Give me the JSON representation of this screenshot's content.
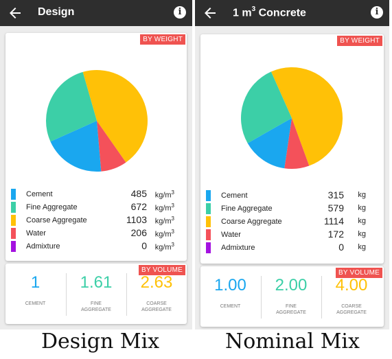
{
  "colors": {
    "cement": "#1aa7ef",
    "fine_aggregate": "#3ccfa7",
    "coarse_aggregate": "#ffc107",
    "water": "#f4515a",
    "admixture": "#a412e0",
    "badge": "#ef5350"
  },
  "icons": {
    "back": "arrow-left-icon",
    "info": "info-icon"
  },
  "screens": [
    {
      "title": "Design",
      "weight_badge": "BY WEIGHT",
      "materials": [
        {
          "name": "Cement",
          "value": 485,
          "unit": "kg/m",
          "unit_sup": "3",
          "color": "#1aa7ef"
        },
        {
          "name": "Fine Aggregate",
          "value": 672,
          "unit": "kg/m",
          "unit_sup": "3",
          "color": "#3ccfa7"
        },
        {
          "name": "Coarse Aggregate",
          "value": 1103,
          "unit": "kg/m",
          "unit_sup": "3",
          "color": "#ffc107"
        },
        {
          "name": "Water",
          "value": 206,
          "unit": "kg/m",
          "unit_sup": "3",
          "color": "#f4515a"
        },
        {
          "name": "Admixture",
          "value": 0,
          "unit": "kg/m",
          "unit_sup": "3",
          "color": "#a412e0"
        }
      ],
      "volume_badge": "BY VOLUME",
      "ratios": [
        {
          "value": "1",
          "label": "CEMENT",
          "color": "#1aa7ef"
        },
        {
          "value": "1.61",
          "label": "FINE AGGREGATE",
          "color": "#3ccfa7"
        },
        {
          "value": "2.63",
          "label": "COARSE AGGREGATE",
          "color": "#ffc107"
        }
      ],
      "caption": "Design  Mix"
    },
    {
      "title_prefix": "1 m",
      "title_sup": "3",
      "title_suffix": " Concrete",
      "weight_badge": "BY WEIGHT",
      "materials": [
        {
          "name": "Cement",
          "value": 315,
          "unit": "kg",
          "unit_sup": "",
          "color": "#1aa7ef"
        },
        {
          "name": "Fine Aggregate",
          "value": 579,
          "unit": "kg",
          "unit_sup": "",
          "color": "#3ccfa7"
        },
        {
          "name": "Coarse Aggregate",
          "value": 1114,
          "unit": "kg",
          "unit_sup": "",
          "color": "#ffc107"
        },
        {
          "name": "Water",
          "value": 172,
          "unit": "kg",
          "unit_sup": "",
          "color": "#f4515a"
        },
        {
          "name": "Admixture",
          "value": 0,
          "unit": "kg",
          "unit_sup": "",
          "color": "#a412e0"
        }
      ],
      "volume_badge": "BY VOLUME",
      "ratios": [
        {
          "value": "1.00",
          "label": "CEMENT",
          "color": "#1aa7ef"
        },
        {
          "value": "2.00",
          "label": "FINE AGGREGATE",
          "color": "#3ccfa7"
        },
        {
          "value": "4.00",
          "label": "COARSE AGGREGATE",
          "color": "#ffc107"
        }
      ],
      "caption": "Nominal  Mix"
    }
  ]
}
